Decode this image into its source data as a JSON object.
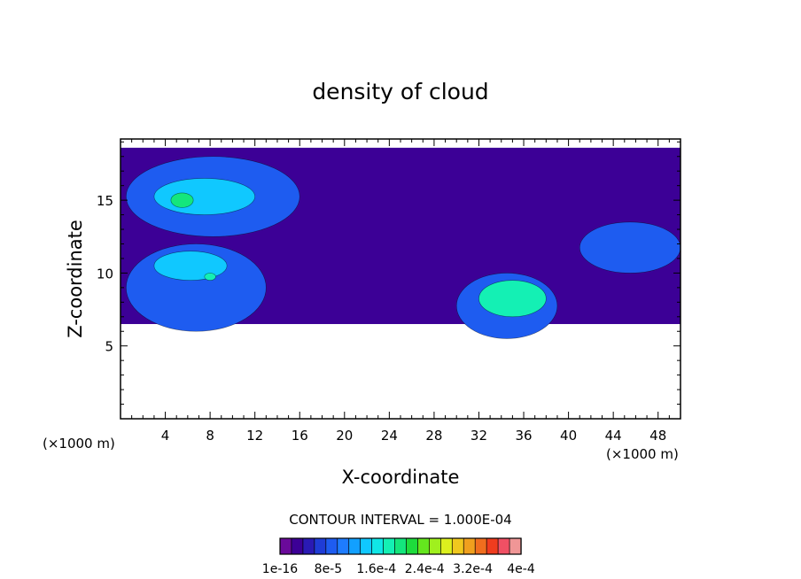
{
  "chart_data": {
    "type": "heatmap",
    "title": "density of cloud",
    "xlabel": "X-coordinate",
    "ylabel": "Z-coordinate",
    "x_unit_left": "(×1000 m)",
    "x_unit_right": "(×1000 m)",
    "xlim": [
      0,
      50
    ],
    "ylim": [
      0,
      19.2
    ],
    "x_ticks": [
      4,
      8,
      12,
      16,
      20,
      24,
      28,
      32,
      36,
      40,
      44,
      48
    ],
    "y_ticks": [
      5,
      10,
      15
    ],
    "contour_interval_text": "CONTOUR INTERVAL = 1.000E-04",
    "colorbar": {
      "levels": 20,
      "range": [
        1e-16,
        0.0004
      ],
      "colors": [
        "#6a0a9a",
        "#3c0096",
        "#2a1ab4",
        "#1f3cd6",
        "#1e5cf0",
        "#1e7cff",
        "#12a0ff",
        "#10c8ff",
        "#10e6e6",
        "#14f0b4",
        "#14e67c",
        "#1edc3c",
        "#64e61e",
        "#a0f01e",
        "#dcf01e",
        "#f0c81e",
        "#f0a01e",
        "#f06e1e",
        "#f03c1e",
        "#f05064",
        "#f09696"
      ],
      "tick_labels": [
        "1e-16",
        "8e-5",
        "1.6e-4",
        "2.4e-4",
        "3.2e-4",
        "4e-4"
      ]
    },
    "regions": [
      {
        "level": 1,
        "x": [
          0,
          50
        ],
        "z": [
          6.5,
          18.6
        ]
      },
      {
        "level": 4,
        "x": [
          0.5,
          16
        ],
        "z": [
          12.5,
          18
        ]
      },
      {
        "level": 7,
        "x": [
          3,
          12
        ],
        "z": [
          14,
          16.5
        ]
      },
      {
        "level": 10,
        "x": [
          4.5,
          6.5
        ],
        "z": [
          14.5,
          15.5
        ]
      },
      {
        "level": 4,
        "x": [
          0.5,
          13
        ],
        "z": [
          6,
          12
        ]
      },
      {
        "level": 7,
        "x": [
          3,
          9.5
        ],
        "z": [
          9.5,
          11.5
        ]
      },
      {
        "level": 9,
        "x": [
          7.5,
          8.5
        ],
        "z": [
          9.5,
          10
        ]
      },
      {
        "level": 4,
        "x": [
          30,
          39
        ],
        "z": [
          5.5,
          10
        ]
      },
      {
        "level": 9,
        "x": [
          32,
          38
        ],
        "z": [
          7,
          9.5
        ]
      },
      {
        "level": 4,
        "x": [
          41,
          50
        ],
        "z": [
          10,
          13.5
        ]
      }
    ]
  }
}
